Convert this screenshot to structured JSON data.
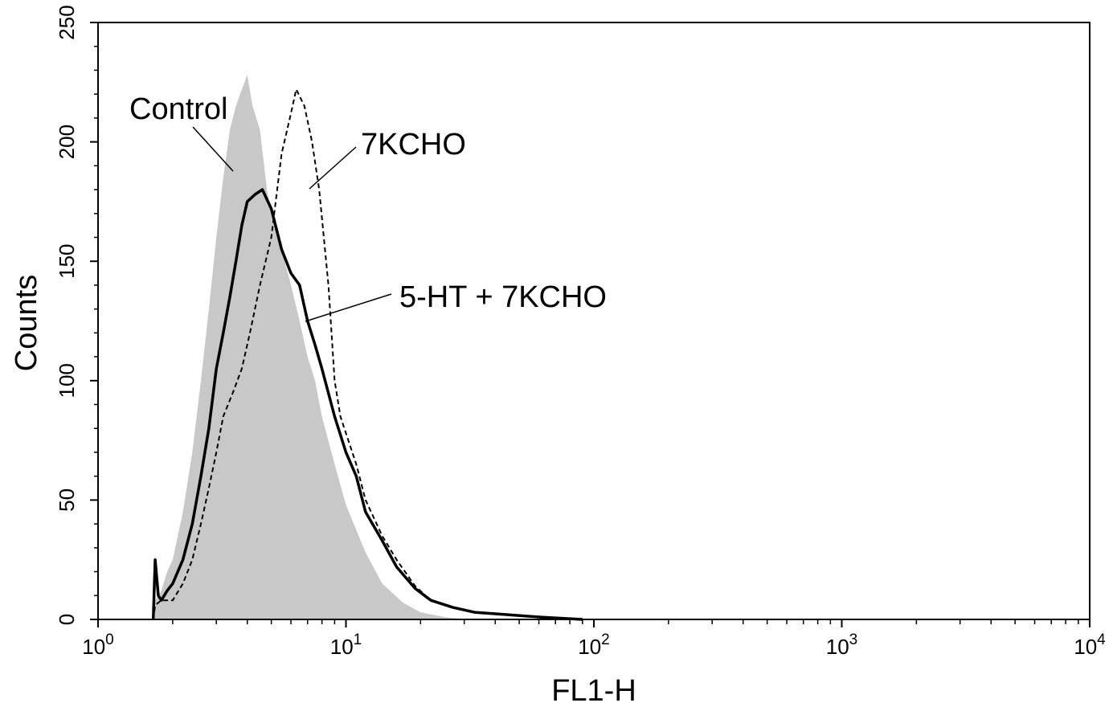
{
  "chart_data": {
    "type": "area",
    "title": "",
    "xlabel": "FL1-H",
    "ylabel": "Counts",
    "x_scale": "log10",
    "xlim": [
      1,
      10000
    ],
    "ylim": [
      0,
      250
    ],
    "x_ticks": [
      {
        "value": 1,
        "base": "10",
        "exp": "0"
      },
      {
        "value": 10,
        "base": "10",
        "exp": "1"
      },
      {
        "value": 100,
        "base": "10",
        "exp": "2"
      },
      {
        "value": 1000,
        "base": "10",
        "exp": "3"
      },
      {
        "value": 10000,
        "base": "10",
        "exp": "4"
      }
    ],
    "y_ticks": [
      "0",
      "50",
      "100",
      "150",
      "200",
      "250"
    ],
    "grid": false,
    "legend": "none",
    "series": [
      {
        "name": "Control",
        "style": "filled",
        "color": "#c8c8c8",
        "points": [
          [
            1.67,
            0
          ],
          [
            1.7,
            8
          ],
          [
            1.8,
            12
          ],
          [
            1.9,
            20
          ],
          [
            2.0,
            25
          ],
          [
            2.2,
            45
          ],
          [
            2.4,
            70
          ],
          [
            2.6,
            100
          ],
          [
            2.8,
            130
          ],
          [
            3.0,
            160
          ],
          [
            3.2,
            185
          ],
          [
            3.4,
            205
          ],
          [
            3.6,
            215
          ],
          [
            3.8,
            222
          ],
          [
            4.0,
            228
          ],
          [
            4.2,
            215
          ],
          [
            4.5,
            205
          ],
          [
            4.8,
            180
          ],
          [
            5.0,
            170
          ],
          [
            5.5,
            155
          ],
          [
            6.0,
            140
          ],
          [
            6.5,
            125
          ],
          [
            7.0,
            110
          ],
          [
            7.5,
            100
          ],
          [
            8.0,
            85
          ],
          [
            9.0,
            65
          ],
          [
            10,
            48
          ],
          [
            12,
            28
          ],
          [
            14,
            15
          ],
          [
            17,
            7
          ],
          [
            20,
            3
          ],
          [
            25,
            1
          ],
          [
            30,
            0
          ]
        ]
      },
      {
        "name": "5-HT + 7KCHO",
        "style": "solid",
        "color": "#000000",
        "points": [
          [
            1.67,
            0
          ],
          [
            1.7,
            25
          ],
          [
            1.75,
            10
          ],
          [
            1.8,
            8
          ],
          [
            1.9,
            12
          ],
          [
            2.0,
            15
          ],
          [
            2.2,
            25
          ],
          [
            2.4,
            40
          ],
          [
            2.6,
            60
          ],
          [
            2.8,
            80
          ],
          [
            3.0,
            105
          ],
          [
            3.2,
            120
          ],
          [
            3.4,
            135
          ],
          [
            3.6,
            150
          ],
          [
            3.8,
            165
          ],
          [
            4.0,
            175
          ],
          [
            4.3,
            178
          ],
          [
            4.6,
            180
          ],
          [
            5.0,
            172
          ],
          [
            5.5,
            155
          ],
          [
            6.0,
            145
          ],
          [
            6.5,
            140
          ],
          [
            7.0,
            125
          ],
          [
            7.5,
            115
          ],
          [
            8.0,
            105
          ],
          [
            9.0,
            85
          ],
          [
            10,
            70
          ],
          [
            11,
            60
          ],
          [
            12,
            45
          ],
          [
            14,
            33
          ],
          [
            16,
            22
          ],
          [
            19,
            13
          ],
          [
            22,
            8
          ],
          [
            27,
            5
          ],
          [
            33,
            3
          ],
          [
            45,
            2
          ],
          [
            60,
            1
          ],
          [
            90,
            0
          ]
        ]
      },
      {
        "name": "7KCHO",
        "style": "dashed",
        "color": "#000000",
        "points": [
          [
            1.67,
            0
          ],
          [
            1.7,
            6
          ],
          [
            1.8,
            8
          ],
          [
            2.0,
            8
          ],
          [
            2.2,
            15
          ],
          [
            2.4,
            25
          ],
          [
            2.6,
            40
          ],
          [
            2.8,
            55
          ],
          [
            3.0,
            70
          ],
          [
            3.2,
            85
          ],
          [
            3.5,
            95
          ],
          [
            3.8,
            105
          ],
          [
            4.1,
            120
          ],
          [
            4.5,
            140
          ],
          [
            5.0,
            160
          ],
          [
            5.5,
            195
          ],
          [
            6.0,
            212
          ],
          [
            6.3,
            222
          ],
          [
            6.8,
            215
          ],
          [
            7.3,
            200
          ],
          [
            7.8,
            180
          ],
          [
            8.5,
            140
          ],
          [
            9.0,
            100
          ],
          [
            9.5,
            85
          ],
          [
            10,
            78
          ],
          [
            11,
            65
          ],
          [
            12,
            50
          ],
          [
            14,
            35
          ],
          [
            16,
            25
          ],
          [
            19,
            14
          ],
          [
            22,
            8
          ],
          [
            27,
            5
          ],
          [
            33,
            3
          ],
          [
            45,
            2
          ],
          [
            60,
            1
          ],
          [
            90,
            0
          ]
        ]
      }
    ],
    "annotations": [
      {
        "text": "Control",
        "series": "Control"
      },
      {
        "text": "7KCHO",
        "series": "7KCHO"
      },
      {
        "text": "5-HT + 7KCHO",
        "series": "5-HT + 7KCHO"
      }
    ]
  }
}
